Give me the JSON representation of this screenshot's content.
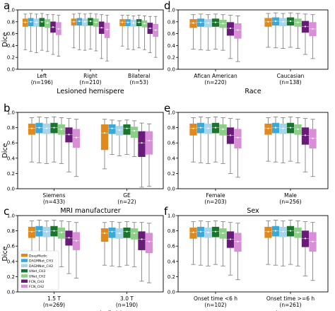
{
  "colors": {
    "DeepMedic": "#e08a1e",
    "DAGMNet_CH3": "#3aa8d8",
    "DAGMNet_CH2": "#a9d4ea",
    "UNet_CH3": "#19752c",
    "UNet_CH2": "#8ccf86",
    "FCN_CH3": "#6a1b7a",
    "FCN_CH2": "#d98ed8"
  },
  "legend": {
    "position": "lower-left of panel c",
    "items": [
      "DeepMedic",
      "DAGMNet_CH3",
      "DAGMNet_CH2",
      "UNet_CH3",
      "UNet_CH2",
      "FCN_CH3",
      "FCN_CH2"
    ]
  },
  "chart_data": [
    {
      "panel": "a",
      "type": "box",
      "ylabel": "Dice",
      "xlabel": "Lesioned hemispere",
      "ylim": [
        0,
        1
      ],
      "yticks": [
        "0.0",
        "0.2",
        "0.4",
        "0.6",
        "0.8",
        "1.0"
      ],
      "categories": [
        {
          "name": "Left",
          "n": "(n=196)",
          "boxes": [
            [
              0.33,
              0.72,
              0.79,
              0.85,
              0.93
            ],
            [
              0.3,
              0.73,
              0.8,
              0.86,
              0.94
            ],
            [
              0.28,
              0.72,
              0.79,
              0.85,
              0.93
            ],
            [
              0.32,
              0.72,
              0.8,
              0.86,
              0.94
            ],
            [
              0.3,
              0.7,
              0.78,
              0.84,
              0.92
            ],
            [
              0.25,
              0.62,
              0.71,
              0.8,
              0.92
            ],
            [
              0.22,
              0.58,
              0.68,
              0.79,
              0.91
            ]
          ]
        },
        {
          "name": "Right",
          "n": "(n=210)",
          "boxes": [
            [
              0.36,
              0.74,
              0.8,
              0.85,
              0.93
            ],
            [
              0.33,
              0.74,
              0.81,
              0.86,
              0.94
            ],
            [
              0.32,
              0.73,
              0.8,
              0.85,
              0.93
            ],
            [
              0.34,
              0.74,
              0.81,
              0.86,
              0.94
            ],
            [
              0.31,
              0.72,
              0.79,
              0.85,
              0.93
            ],
            [
              0.18,
              0.6,
              0.7,
              0.8,
              0.92
            ],
            [
              0.14,
              0.53,
              0.67,
              0.78,
              0.91
            ]
          ]
        },
        {
          "name": "Bilateral",
          "n": "(n=53)",
          "boxes": [
            [
              0.39,
              0.73,
              0.79,
              0.84,
              0.91
            ],
            [
              0.34,
              0.73,
              0.79,
              0.84,
              0.91
            ],
            [
              0.33,
              0.72,
              0.78,
              0.83,
              0.9
            ],
            [
              0.36,
              0.73,
              0.79,
              0.84,
              0.91
            ],
            [
              0.33,
              0.71,
              0.77,
              0.82,
              0.9
            ],
            [
              0.28,
              0.6,
              0.69,
              0.78,
              0.89
            ],
            [
              0.2,
              0.55,
              0.66,
              0.76,
              0.89
            ]
          ]
        }
      ]
    },
    {
      "panel": "b",
      "type": "box",
      "ylabel": "Dice",
      "xlabel": "MRI manufacturer",
      "ylim": [
        0,
        1
      ],
      "yticks": [
        "0.0",
        "0.2",
        "0.4",
        "0.6",
        "0.8",
        "1.0"
      ],
      "categories": [
        {
          "name": "Siemens",
          "n": "(n=433)",
          "boxes": [
            [
              0.35,
              0.71,
              0.79,
              0.85,
              0.93
            ],
            [
              0.34,
              0.73,
              0.8,
              0.86,
              0.94
            ],
            [
              0.33,
              0.72,
              0.79,
              0.85,
              0.93
            ],
            [
              0.35,
              0.73,
              0.8,
              0.86,
              0.94
            ],
            [
              0.33,
              0.71,
              0.78,
              0.84,
              0.93
            ],
            [
              0.22,
              0.61,
              0.71,
              0.8,
              0.92
            ],
            [
              0.16,
              0.54,
              0.67,
              0.78,
              0.91
            ]
          ]
        },
        {
          "name": "GE",
          "n": "(n=22)",
          "boxes": [
            [
              0.26,
              0.51,
              0.73,
              0.84,
              0.91
            ],
            [
              0.45,
              0.72,
              0.79,
              0.84,
              0.9
            ],
            [
              0.43,
              0.7,
              0.77,
              0.82,
              0.89
            ],
            [
              0.45,
              0.71,
              0.79,
              0.84,
              0.9
            ],
            [
              0.42,
              0.67,
              0.76,
              0.81,
              0.89
            ],
            [
              0.02,
              0.42,
              0.6,
              0.75,
              0.86
            ],
            [
              0.03,
              0.45,
              0.63,
              0.75,
              0.85
            ]
          ]
        }
      ]
    },
    {
      "panel": "c",
      "type": "box",
      "ylabel": "Dice",
      "xlabel": "MRI magnetic field",
      "ylim": [
        0,
        1
      ],
      "yticks": [
        "0.0",
        "0.2",
        "0.4",
        "0.6",
        "0.8",
        "1.0"
      ],
      "categories": [
        {
          "name": "1.5 T",
          "n": "(n=269)",
          "boxes": [
            [
              0.36,
              0.71,
              0.79,
              0.85,
              0.93
            ],
            [
              0.34,
              0.73,
              0.8,
              0.86,
              0.94
            ],
            [
              0.33,
              0.72,
              0.79,
              0.85,
              0.93
            ],
            [
              0.35,
              0.73,
              0.8,
              0.86,
              0.94
            ],
            [
              0.33,
              0.7,
              0.78,
              0.84,
              0.93
            ],
            [
              0.24,
              0.61,
              0.71,
              0.8,
              0.92
            ],
            [
              0.18,
              0.55,
              0.67,
              0.78,
              0.91
            ]
          ]
        },
        {
          "name": "3.0 T",
          "n": "(n=190)",
          "boxes": [
            [
              0.35,
              0.66,
              0.77,
              0.83,
              0.91
            ],
            [
              0.34,
              0.71,
              0.79,
              0.84,
              0.92
            ],
            [
              0.33,
              0.7,
              0.77,
              0.83,
              0.91
            ],
            [
              0.35,
              0.71,
              0.79,
              0.84,
              0.92
            ],
            [
              0.33,
              0.69,
              0.77,
              0.83,
              0.91
            ],
            [
              0.14,
              0.55,
              0.69,
              0.79,
              0.91
            ],
            [
              0.12,
              0.51,
              0.66,
              0.77,
              0.9
            ]
          ]
        }
      ]
    },
    {
      "panel": "d",
      "type": "box",
      "ylabel": "",
      "xlabel": "Race",
      "ylim": [
        0,
        1
      ],
      "yticks": [
        "0.0",
        "0.2",
        "0.4",
        "0.6",
        "0.8",
        "1.0"
      ],
      "categories": [
        {
          "name": "Afican American",
          "n": "(n=220)",
          "boxes": [
            [
              0.34,
              0.7,
              0.78,
              0.84,
              0.92
            ],
            [
              0.33,
              0.72,
              0.79,
              0.85,
              0.93
            ],
            [
              0.32,
              0.71,
              0.78,
              0.84,
              0.92
            ],
            [
              0.34,
              0.72,
              0.79,
              0.85,
              0.93
            ],
            [
              0.32,
              0.7,
              0.77,
              0.83,
              0.92
            ],
            [
              0.18,
              0.57,
              0.69,
              0.79,
              0.91
            ],
            [
              0.13,
              0.52,
              0.66,
              0.77,
              0.9
            ]
          ]
        },
        {
          "name": "Caucasian",
          "n": "(n=138)",
          "boxes": [
            [
              0.37,
              0.72,
              0.8,
              0.86,
              0.94
            ],
            [
              0.36,
              0.74,
              0.81,
              0.87,
              0.95
            ],
            [
              0.35,
              0.73,
              0.8,
              0.86,
              0.94
            ],
            [
              0.37,
              0.74,
              0.81,
              0.87,
              0.95
            ],
            [
              0.35,
              0.72,
              0.79,
              0.85,
              0.94
            ],
            [
              0.25,
              0.62,
              0.72,
              0.81,
              0.93
            ],
            [
              0.18,
              0.56,
              0.68,
              0.79,
              0.92
            ]
          ]
        }
      ]
    },
    {
      "panel": "e",
      "type": "box",
      "ylabel": "",
      "xlabel": "Sex",
      "ylim": [
        0,
        1
      ],
      "yticks": [
        "0.0",
        "0.2",
        "0.4",
        "0.6",
        "0.8",
        "1.0"
      ],
      "categories": [
        {
          "name": "Female",
          "n": "(n=203)",
          "boxes": [
            [
              0.35,
              0.7,
              0.79,
              0.85,
              0.93
            ],
            [
              0.34,
              0.73,
              0.8,
              0.86,
              0.94
            ],
            [
              0.33,
              0.72,
              0.79,
              0.85,
              0.93
            ],
            [
              0.35,
              0.73,
              0.8,
              0.86,
              0.94
            ],
            [
              0.33,
              0.7,
              0.78,
              0.84,
              0.93
            ],
            [
              0.2,
              0.59,
              0.7,
              0.8,
              0.92
            ],
            [
              0.15,
              0.53,
              0.67,
              0.78,
              0.91
            ]
          ]
        },
        {
          "name": "Male",
          "n": "(n=256)",
          "boxes": [
            [
              0.36,
              0.71,
              0.79,
              0.85,
              0.93
            ],
            [
              0.35,
              0.73,
              0.8,
              0.86,
              0.94
            ],
            [
              0.34,
              0.72,
              0.79,
              0.85,
              0.93
            ],
            [
              0.36,
              0.73,
              0.8,
              0.86,
              0.94
            ],
            [
              0.34,
              0.71,
              0.78,
              0.84,
              0.93
            ],
            [
              0.22,
              0.58,
              0.7,
              0.8,
              0.92
            ],
            [
              0.16,
              0.53,
              0.66,
              0.78,
              0.91
            ]
          ]
        }
      ]
    },
    {
      "panel": "f",
      "type": "box",
      "ylabel": "",
      "xlabel": "Symptom onset time",
      "ylim": [
        0,
        1
      ],
      "yticks": [
        "0.0",
        "0.2",
        "0.4",
        "0.6",
        "0.8",
        "1.0"
      ],
      "categories": [
        {
          "name": "Onset time <6 h",
          "n": "(n=102)",
          "boxes": [
            [
              0.36,
              0.7,
              0.78,
              0.84,
              0.92
            ],
            [
              0.35,
              0.72,
              0.79,
              0.85,
              0.93
            ],
            [
              0.34,
              0.71,
              0.78,
              0.84,
              0.92
            ],
            [
              0.36,
              0.72,
              0.79,
              0.85,
              0.93
            ],
            [
              0.34,
              0.7,
              0.77,
              0.83,
              0.92
            ],
            [
              0.22,
              0.58,
              0.69,
              0.79,
              0.91
            ],
            [
              0.16,
              0.53,
              0.66,
              0.77,
              0.9
            ]
          ]
        },
        {
          "name": "Onset time >=6 h",
          "n": "(n=261)",
          "boxes": [
            [
              0.36,
              0.71,
              0.79,
              0.85,
              0.93
            ],
            [
              0.35,
              0.73,
              0.8,
              0.86,
              0.94
            ],
            [
              0.34,
              0.72,
              0.79,
              0.85,
              0.93
            ],
            [
              0.36,
              0.73,
              0.8,
              0.86,
              0.94
            ],
            [
              0.34,
              0.71,
              0.78,
              0.84,
              0.93
            ],
            [
              0.21,
              0.59,
              0.7,
              0.8,
              0.92
            ],
            [
              0.15,
              0.53,
              0.66,
              0.78,
              0.91
            ]
          ]
        }
      ]
    }
  ]
}
